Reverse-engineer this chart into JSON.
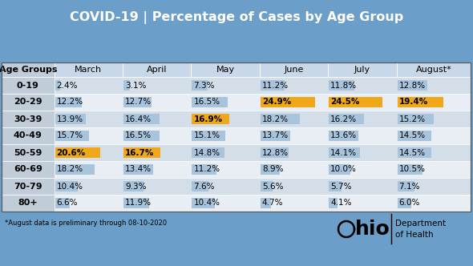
{
  "title": "COVID-19 | Percentage of Cases by Age Group",
  "bg_color": "#6b9ec8",
  "columns": [
    "Age Groups",
    "March",
    "April",
    "May",
    "June",
    "July",
    "August*"
  ],
  "age_groups": [
    "0-19",
    "20-29",
    "30-39",
    "40-49",
    "50-59",
    "60-69",
    "70-79",
    "80+"
  ],
  "data": {
    "March": [
      2.4,
      12.2,
      13.9,
      15.7,
      20.6,
      18.2,
      10.4,
      6.6
    ],
    "April": [
      3.1,
      12.7,
      16.4,
      16.5,
      16.7,
      13.4,
      9.3,
      11.9
    ],
    "May": [
      7.3,
      16.5,
      16.9,
      15.1,
      14.8,
      11.2,
      7.6,
      10.4
    ],
    "June": [
      11.2,
      24.9,
      18.2,
      13.7,
      12.8,
      8.9,
      5.6,
      4.7
    ],
    "July": [
      11.8,
      24.5,
      16.2,
      13.6,
      14.1,
      10.0,
      5.7,
      4.1
    ],
    "August*": [
      12.8,
      19.4,
      15.2,
      14.5,
      14.5,
      10.5,
      7.1,
      6.0
    ]
  },
  "highlighted": {
    "March": [
      false,
      false,
      false,
      false,
      true,
      false,
      false,
      false
    ],
    "April": [
      false,
      false,
      false,
      false,
      true,
      false,
      false,
      false
    ],
    "May": [
      false,
      false,
      true,
      false,
      false,
      false,
      false,
      false
    ],
    "June": [
      false,
      true,
      false,
      false,
      false,
      false,
      false,
      false
    ],
    "July": [
      false,
      true,
      false,
      false,
      false,
      false,
      false,
      false
    ],
    "August*": [
      false,
      true,
      false,
      false,
      false,
      false,
      false,
      false
    ]
  },
  "highlight_color": "#f0a818",
  "bar_color": "#a8c4dc",
  "row_colors": [
    "#d4dee8",
    "#e8eef4",
    "#d4dee8",
    "#e8eef4",
    "#d4dee8",
    "#e8eef4",
    "#d4dee8",
    "#e8eef4"
  ],
  "header_bg": "#c8d8e8",
  "age_col_bg": "#c0cdd8",
  "footnote": "*August data is preliminary through 08-10-2020",
  "max_bar_pct": 25.0,
  "title_color": "white",
  "title_fontsize": 11.5,
  "header_fontsize": 8,
  "cell_fontsize": 7.5,
  "age_fontsize": 8
}
